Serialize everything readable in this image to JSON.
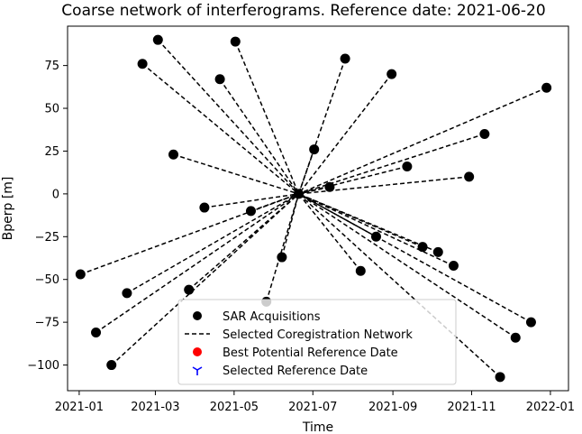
{
  "chart_data": {
    "type": "scatter",
    "title": "Coarse network of interferograms. Reference date: 2021-06-20",
    "xlabel": "Time",
    "ylabel": "Bperp [m]",
    "xlim": [
      "2020-12-23",
      "2022-01-15"
    ],
    "ylim": [
      -115,
      98
    ],
    "x_ticks": [
      "2021-01-01",
      "2021-03-01",
      "2021-05-01",
      "2021-07-01",
      "2021-09-01",
      "2021-11-01",
      "2022-01-01"
    ],
    "x_tick_labels": [
      "2021-01",
      "2021-03",
      "2021-05",
      "2021-07",
      "2021-09",
      "2021-11",
      "2022-01"
    ],
    "y_ticks": [
      -100,
      -75,
      -50,
      -25,
      0,
      25,
      50,
      75
    ],
    "y_tick_labels": [
      "−100",
      "−75",
      "−50",
      "−25",
      "0",
      "25",
      "50",
      "75"
    ],
    "grid": false,
    "legend_position": "lower-center",
    "reference": {
      "date": "2021-06-20",
      "bperp": 0
    },
    "series": [
      {
        "name": "SAR Acquisitions",
        "kind": "points",
        "color": "#000000",
        "points": [
          {
            "date": "2021-01-02",
            "bperp": -47
          },
          {
            "date": "2021-01-14",
            "bperp": -81
          },
          {
            "date": "2021-01-26",
            "bperp": -100
          },
          {
            "date": "2021-02-07",
            "bperp": -58
          },
          {
            "date": "2021-02-19",
            "bperp": 76
          },
          {
            "date": "2021-03-03",
            "bperp": 90
          },
          {
            "date": "2021-03-15",
            "bperp": 23
          },
          {
            "date": "2021-03-27",
            "bperp": -56
          },
          {
            "date": "2021-04-08",
            "bperp": -8
          },
          {
            "date": "2021-04-20",
            "bperp": 67
          },
          {
            "date": "2021-05-02",
            "bperp": 89
          },
          {
            "date": "2021-05-14",
            "bperp": -10
          },
          {
            "date": "2021-05-26",
            "bperp": -63
          },
          {
            "date": "2021-06-07",
            "bperp": -37
          },
          {
            "date": "2021-06-20",
            "bperp": 0
          },
          {
            "date": "2021-07-02",
            "bperp": 26
          },
          {
            "date": "2021-07-14",
            "bperp": 4
          },
          {
            "date": "2021-07-26",
            "bperp": 79
          },
          {
            "date": "2021-08-07",
            "bperp": -45
          },
          {
            "date": "2021-08-19",
            "bperp": -25
          },
          {
            "date": "2021-08-31",
            "bperp": 70
          },
          {
            "date": "2021-09-12",
            "bperp": 16
          },
          {
            "date": "2021-09-24",
            "bperp": -31
          },
          {
            "date": "2021-10-06",
            "bperp": -34
          },
          {
            "date": "2021-10-18",
            "bperp": -42
          },
          {
            "date": "2021-10-30",
            "bperp": 10
          },
          {
            "date": "2021-11-11",
            "bperp": 35
          },
          {
            "date": "2021-11-23",
            "bperp": -107
          },
          {
            "date": "2021-12-05",
            "bperp": -84
          },
          {
            "date": "2021-12-17",
            "bperp": -75
          },
          {
            "date": "2021-12-29",
            "bperp": 62
          }
        ]
      },
      {
        "name": "Selected Coregistration Network",
        "kind": "dashed-lines-to-reference",
        "color": "#000000"
      },
      {
        "name": "Best Potential Reference Date",
        "kind": "marker",
        "color": "#ff0000",
        "marker": "circle"
      },
      {
        "name": "Selected Reference Date",
        "kind": "marker",
        "color": "#0000ff",
        "marker": "tri-down"
      }
    ]
  }
}
